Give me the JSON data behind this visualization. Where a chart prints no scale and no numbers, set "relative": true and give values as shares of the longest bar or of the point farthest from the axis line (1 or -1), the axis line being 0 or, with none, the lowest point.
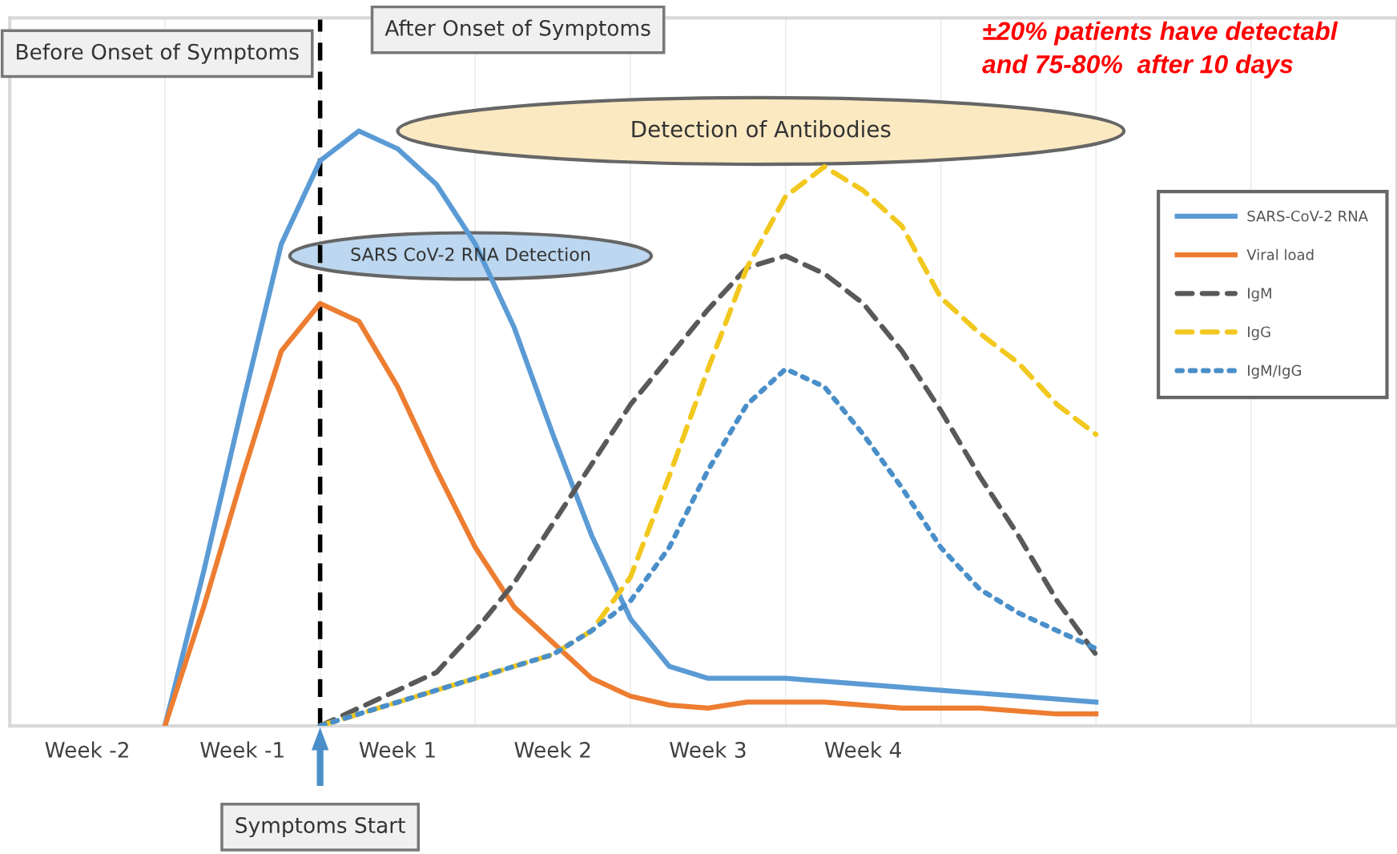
{
  "chart_data": {
    "type": "line",
    "relative": true,
    "categories": [
      null,
      null,
      "Week -2",
      null,
      null,
      null,
      "Week -1",
      null,
      null,
      null,
      "Week 1",
      null,
      null,
      null,
      "Week 2",
      null,
      null,
      null,
      "Week 3",
      null,
      null,
      null,
      "Week 4",
      null,
      null,
      null,
      null,
      null,
      null,
      null,
      null,
      null,
      null,
      null,
      null,
      null
    ],
    "grid": "x",
    "legend": "right",
    "series": [
      {
        "name": "SARS-CoV-2 RNA",
        "color": "#5b9bd5",
        "line_style": "solid",
        "values": [
          null,
          null,
          null,
          null,
          0,
          0.26,
          0.54,
          0.81,
          0.95,
          1.0,
          0.97,
          0.91,
          0.81,
          0.67,
          0.49,
          0.32,
          0.18,
          0.1,
          0.08,
          0.08,
          0.08,
          0.075,
          0.07,
          0.065,
          0.06,
          0.055,
          0.05,
          0.045,
          0.04,
          null,
          null,
          null,
          null,
          null,
          null,
          null
        ]
      },
      {
        "name": "Viral load",
        "color": "#ed7d31",
        "line_style": "solid",
        "values": [
          null,
          null,
          null,
          null,
          0,
          0.2,
          0.42,
          0.63,
          0.71,
          0.68,
          0.57,
          0.43,
          0.3,
          0.2,
          0.14,
          0.08,
          0.05,
          0.035,
          0.03,
          0.04,
          0.04,
          0.04,
          0.035,
          0.03,
          0.03,
          0.03,
          0.025,
          0.02,
          0.02,
          null,
          null,
          null,
          null,
          null,
          null,
          null
        ]
      },
      {
        "name": "IgM",
        "color": "#595959",
        "line_style": "dashed",
        "values": [
          null,
          null,
          null,
          null,
          null,
          null,
          null,
          null,
          0,
          0.03,
          0.06,
          0.09,
          0.16,
          0.24,
          0.34,
          0.44,
          0.54,
          0.62,
          0.7,
          0.77,
          0.79,
          0.76,
          0.71,
          0.63,
          0.53,
          0.42,
          0.32,
          0.21,
          0.12,
          null,
          null,
          null,
          null,
          null,
          null,
          null
        ]
      },
      {
        "name": "IgG",
        "color": "#f2c81e",
        "line_style": "dashed",
        "values": [
          null,
          null,
          null,
          null,
          null,
          null,
          null,
          null,
          0,
          0.02,
          0.04,
          0.06,
          0.08,
          0.1,
          0.12,
          0.16,
          0.25,
          0.42,
          0.6,
          0.77,
          0.89,
          0.94,
          0.9,
          0.84,
          0.72,
          0.66,
          0.61,
          0.54,
          0.49,
          null,
          null,
          null,
          null,
          null,
          null,
          null
        ]
      },
      {
        "name": "IgM/IgG",
        "color": "#4a8fc9",
        "line_style": "dotted",
        "values": [
          null,
          null,
          null,
          null,
          null,
          null,
          null,
          null,
          0,
          0.02,
          0.04,
          0.06,
          0.08,
          0.1,
          0.12,
          0.16,
          0.21,
          0.3,
          0.43,
          0.54,
          0.6,
          0.57,
          0.49,
          0.4,
          0.3,
          0.23,
          0.19,
          0.16,
          0.13,
          null,
          null,
          null,
          null,
          null,
          null,
          null
        ]
      }
    ],
    "annotations": [
      "Before Onset of Symptoms",
      "After Onset of Symptoms",
      "Detection of Antibodies",
      "SARS CoV-2 RNA Detection",
      "±20% patients have detectabl\nand 75-80%  after 10 days",
      "Symptoms Start"
    ]
  }
}
